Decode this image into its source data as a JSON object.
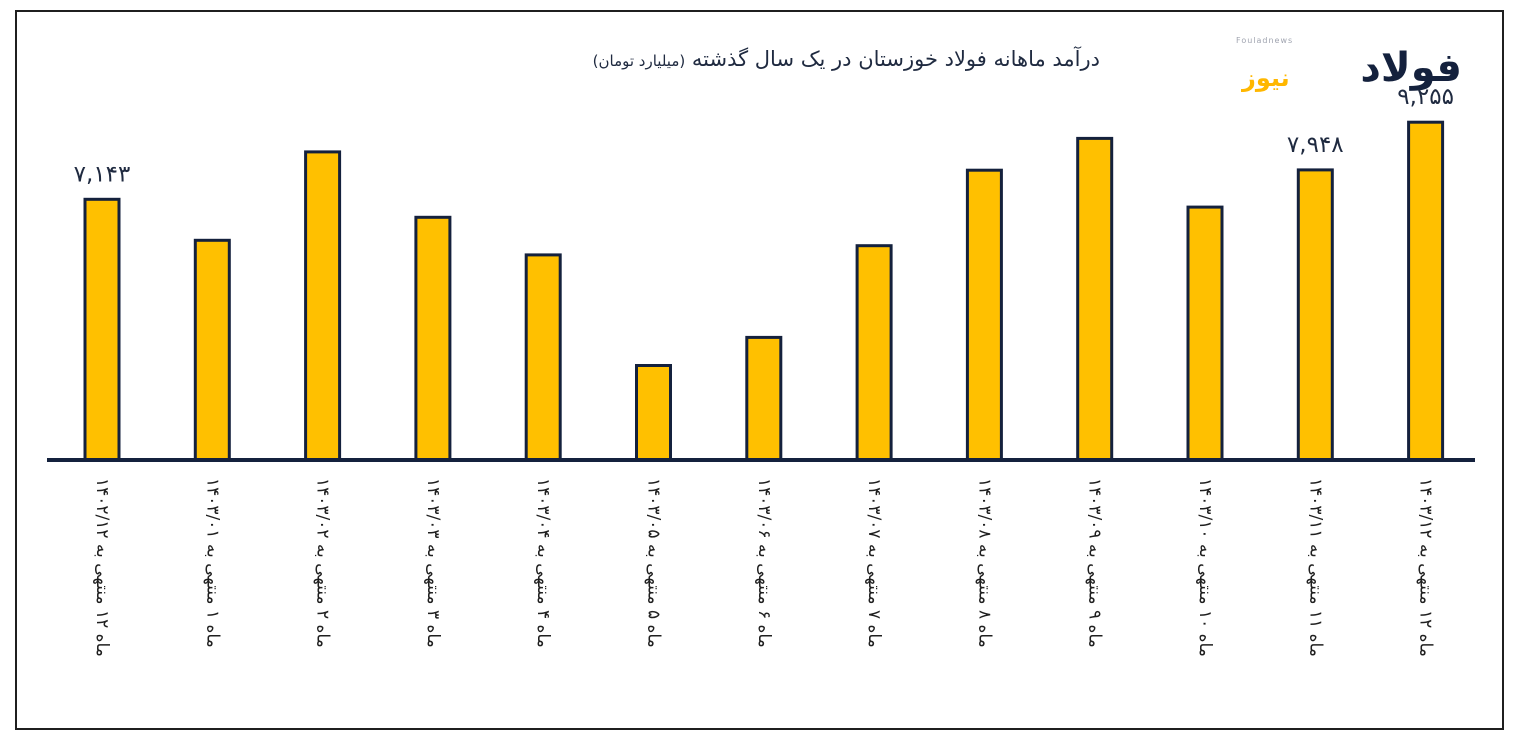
{
  "chart_data": {
    "type": "bar",
    "title": "درآمد ماهانه فولاد خوزستان در یک سال گذشته",
    "unit_label": "(میلیارد تومان)",
    "categories": [
      "ماه ۱۲ منتهی به ۱۴۰۲/۱۲",
      "ماه ۱ منتهی به ۱۴۰۳/۰۱",
      "ماه ۲ منتهی به ۱۴۰۳/۰۲",
      "ماه ۳ منتهی به ۱۴۰۳/۰۳",
      "ماه ۴ منتهی به ۱۴۰۳/۰۴",
      "ماه ۵ منتهی به ۱۴۰۳/۰۵",
      "ماه ۶ منتهی به ۱۴۰۳/۰۶",
      "ماه ۷ منتهی به ۱۴۰۳/۰۷",
      "ماه ۸ منتهی به ۱۴۰۳/۰۸",
      "ماه ۹ منتهی به ۱۴۰۳/۰۹",
      "ماه ۱۰ منتهی به ۱۴۰۳/۱۰",
      "ماه ۱۱ منتهی به ۱۴۰۳/۱۱",
      "ماه ۱۲ منتهی به ۱۴۰۳/۱۲"
    ],
    "values": [
      7143,
      6020,
      8440,
      6650,
      5620,
      2590,
      3360,
      5870,
      7940,
      8810,
      6930,
      7948,
      9255
    ],
    "data_labels": [
      "۷,۱۴۳",
      "",
      "",
      "",
      "",
      "",
      "",
      "",
      "",
      "",
      "",
      "۷,۹۴۸",
      "۹,۲۵۵"
    ],
    "ylim": [
      0,
      10000
    ],
    "grid": false,
    "colors": {
      "bar_fill": "#ffc000",
      "bar_stroke": "#14213d",
      "axis": "#14213d",
      "text": "#1f2a40"
    }
  },
  "logo": {
    "brand_text": "فولاد",
    "brand_sub": "نیوز",
    "tiny_text": "Fouladnews"
  }
}
